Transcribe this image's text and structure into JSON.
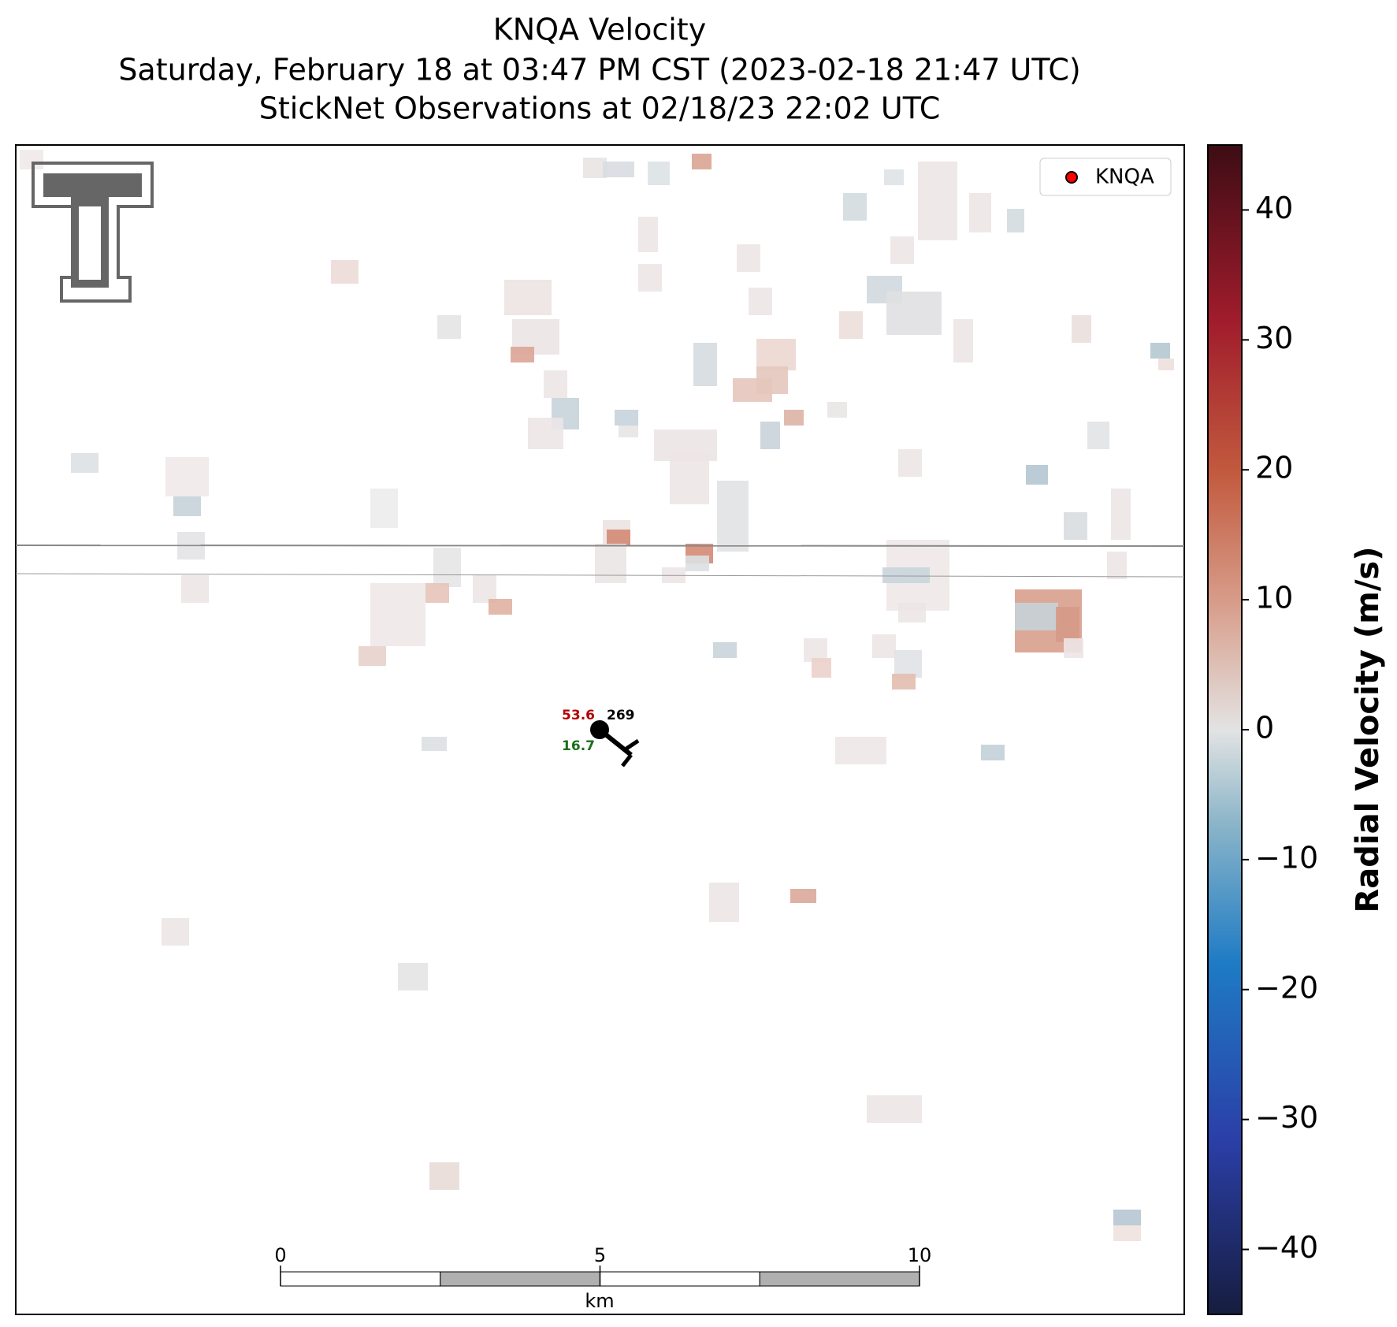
{
  "title_lines": [
    "KNQA Velocity",
    "Saturday, February 18 at 03:47 PM CST (2023-02-18 21:47 UTC)",
    "StickNet Observations at 02/18/23 22:02 UTC"
  ],
  "legend": {
    "label": "KNQA",
    "color": "#ff0000"
  },
  "station": {
    "temperature": 53.6,
    "wind_direction": 269,
    "dewpoint": 16.7
  },
  "scale_bar": {
    "range": [
      0,
      10
    ],
    "ticks": [
      0,
      5,
      10
    ],
    "unit": "km"
  },
  "colorbar": {
    "label": "Radial Velocity (m/s)",
    "clim": [
      -45,
      45
    ],
    "ticks": [
      {
        "value": -40,
        "label": "−40"
      },
      {
        "value": -30,
        "label": "−30"
      },
      {
        "value": -20,
        "label": "−20"
      },
      {
        "value": -10,
        "label": "−10"
      },
      0,
      10,
      20,
      30,
      40
    ]
  }
}
